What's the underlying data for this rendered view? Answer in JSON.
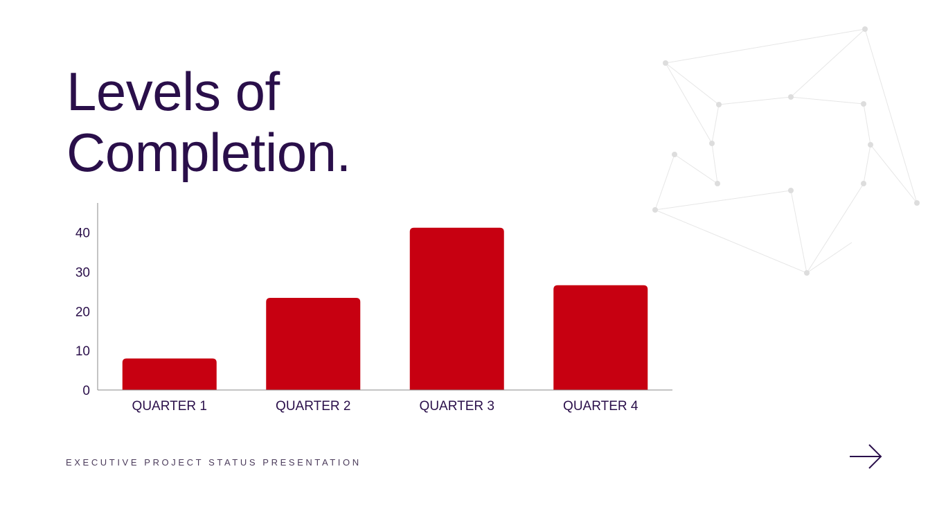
{
  "slide": {
    "title_line1": "Levels of",
    "title_line2": "Completion.",
    "footer": "EXECUTIVE PROJECT STATUS PRESENTATION",
    "next_icon": "arrow-right-icon"
  },
  "colors": {
    "bar": "#c70011",
    "text": "#2a0f4a",
    "network": "#dddddd"
  },
  "chart_data": {
    "type": "bar",
    "title": "",
    "xlabel": "",
    "ylabel": "",
    "categories": [
      "QUARTER 1",
      "QUARTER 2",
      "QUARTER 3",
      "QUARTER 4"
    ],
    "values": [
      8,
      23.4,
      41.2,
      26.6
    ],
    "yticks": [
      0,
      10,
      20,
      30,
      40
    ],
    "ylim": [
      0,
      47.5
    ],
    "grid": false,
    "legend": "none"
  }
}
